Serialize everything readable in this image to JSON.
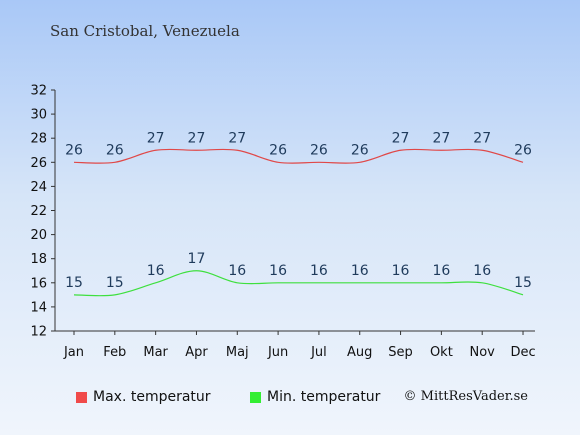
{
  "chart_data": {
    "type": "line",
    "title": "San Cristobal, Venezuela",
    "categories": [
      "Jan",
      "Feb",
      "Mar",
      "Apr",
      "Maj",
      "Jun",
      "Jul",
      "Aug",
      "Sep",
      "Okt",
      "Nov",
      "Dec"
    ],
    "series": [
      {
        "name": "Max. temperatur",
        "color": "#e04848",
        "legend_color": "#f04a4a",
        "values": [
          26,
          26,
          27,
          27,
          27,
          26,
          26,
          26,
          27,
          27,
          27,
          26
        ]
      },
      {
        "name": "Min. temperatur",
        "color": "#3ee03e",
        "legend_color": "#33ee33",
        "values": [
          15,
          15,
          16,
          17,
          16,
          16,
          16,
          16,
          16,
          16,
          16,
          15
        ]
      }
    ],
    "ylim": [
      12,
      32
    ],
    "yticks": [
      12,
      14,
      16,
      18,
      20,
      22,
      24,
      26,
      28,
      30,
      32
    ],
    "grid": false,
    "legend_position": "bottom-left",
    "label_color": "#1f3b5c"
  },
  "copyright": "© MittResVader.se"
}
